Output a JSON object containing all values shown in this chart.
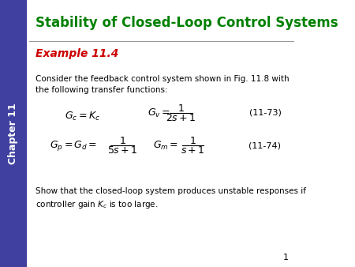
{
  "title": "Stability of Closed-Loop Control Systems",
  "title_color": "#008000",
  "example_label": "Example 11.4",
  "example_color": "#CC0000",
  "body_text1": "Consider the feedback control system shown in Fig. 11.8 with\nthe following transfer functions:",
  "eq_num1": "(11-73)",
  "eq_num2": "(11-74)",
  "footer_text": "Show that the closed-loop system produces unstable responses if\ncontroller gain $K_c$ is too large.",
  "sidebar_color": "#4040A0",
  "sidebar_text": "Chapter 11",
  "sidebar_text_color": "#FFFFFF",
  "background_color": "#FFFFFF",
  "page_number": "1"
}
